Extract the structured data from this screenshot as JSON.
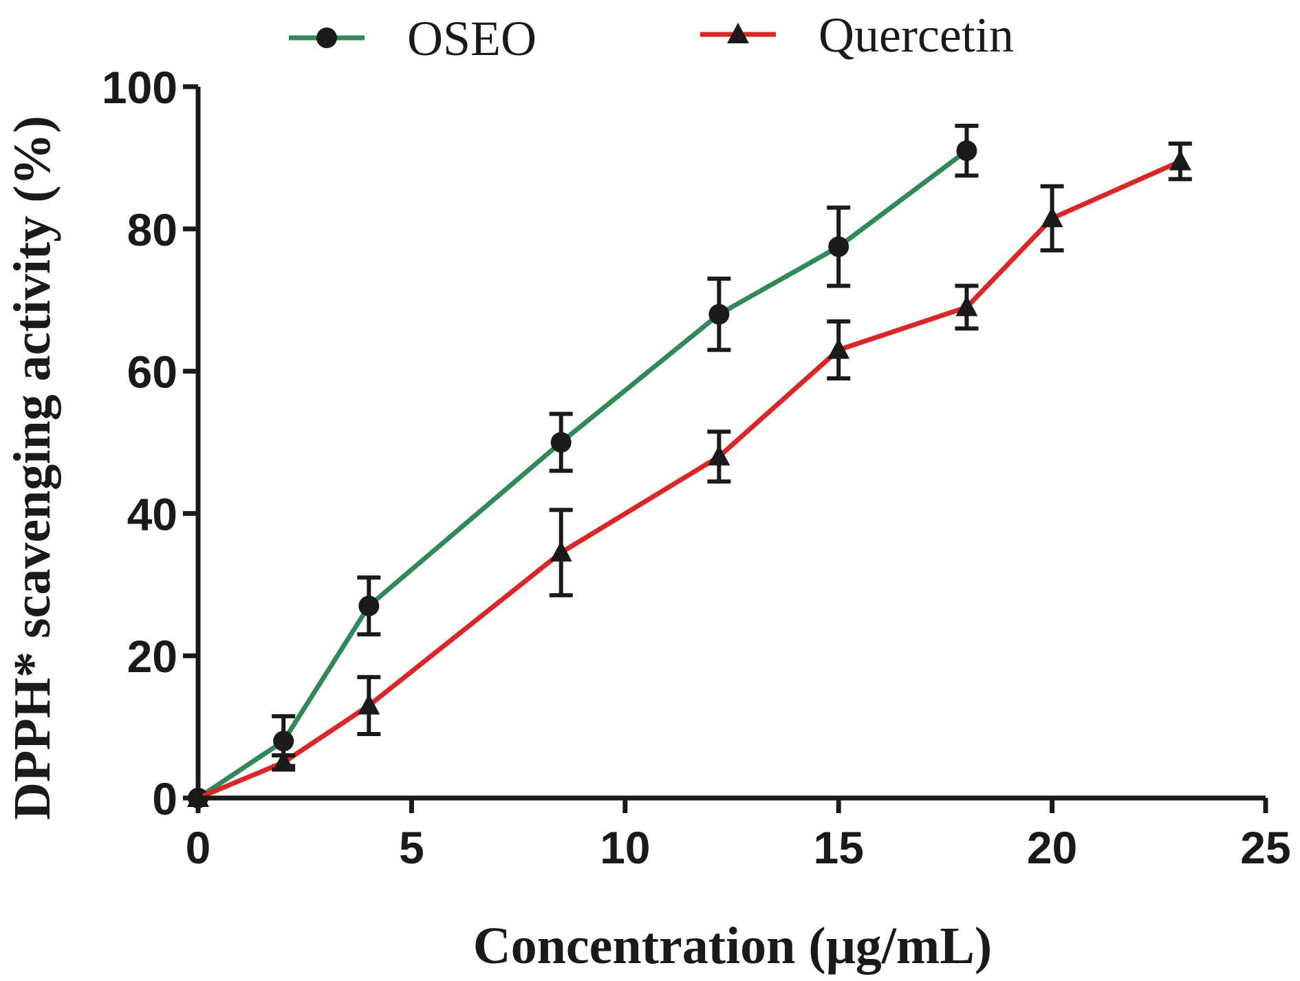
{
  "chart_data": {
    "type": "line",
    "title": "",
    "xlabel": "Concentration (μg/mL)",
    "ylabel": "DPPH* scavenging activity (%)",
    "xlim": [
      0,
      25
    ],
    "ylim": [
      0,
      100
    ],
    "xticks": [
      0,
      5,
      10,
      15,
      20,
      25
    ],
    "yticks": [
      0,
      20,
      40,
      60,
      80,
      100
    ],
    "xtick_labels": [
      "0",
      "5",
      "10",
      "15",
      "20",
      "25"
    ],
    "ytick_labels": [
      "0",
      "20",
      "40",
      "60",
      "80",
      "100"
    ],
    "grid": false,
    "legend_position": "top",
    "series": [
      {
        "name": "OSEO",
        "color": "#2e8b57",
        "marker": "circle",
        "x": [
          0,
          2,
          4,
          8.5,
          12.2,
          15,
          18
        ],
        "y": [
          0,
          8,
          27,
          50,
          68,
          77.5,
          91
        ],
        "err": [
          0,
          3.5,
          4,
          4,
          5,
          5.5,
          3.5
        ]
      },
      {
        "name": "Quercetin",
        "color": "#e02424",
        "marker": "triangle",
        "x": [
          0,
          2,
          4,
          8.5,
          12.2,
          15,
          18,
          20,
          23
        ],
        "y": [
          0,
          5,
          13,
          34.5,
          48,
          63,
          69,
          81.5,
          89.5
        ],
        "err": [
          0,
          1,
          4,
          6,
          3.5,
          4,
          3,
          4.5,
          2.5
        ]
      }
    ]
  }
}
